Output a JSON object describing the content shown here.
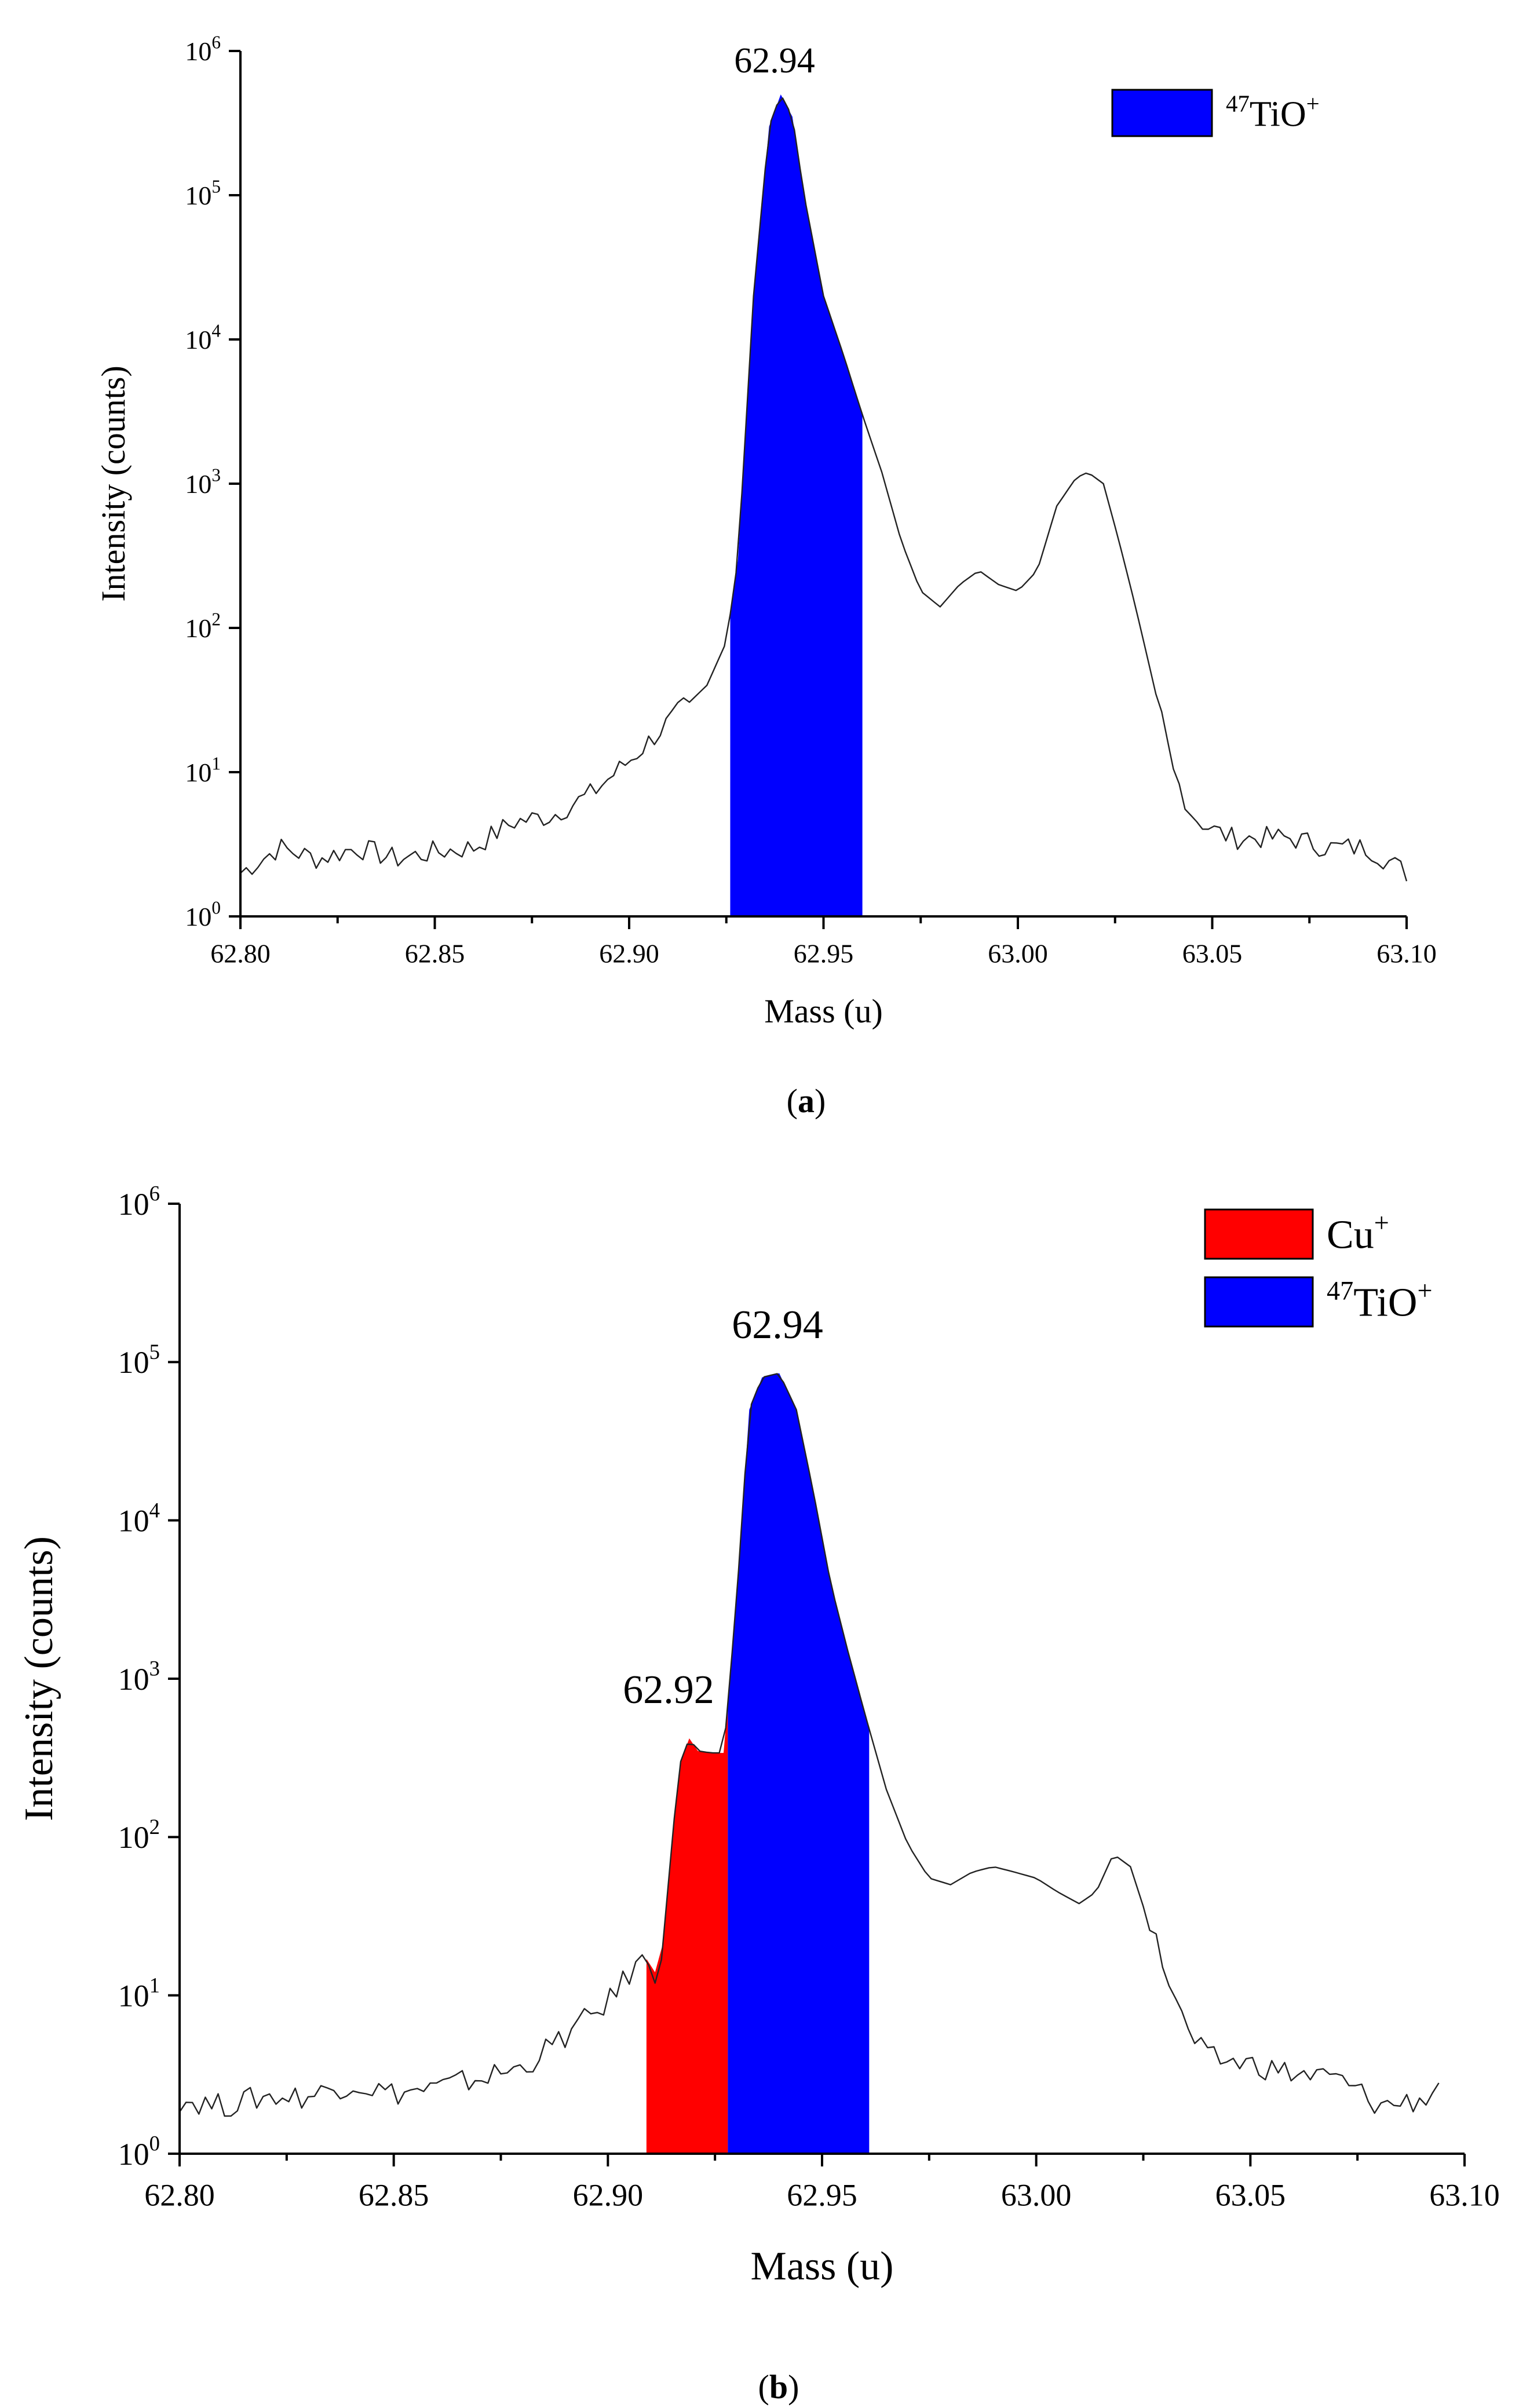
{
  "chart_data": [
    {
      "type": "area",
      "panel_label": "a",
      "xlabel": "Mass (u)",
      "ylabel": "Intensity (counts)",
      "xlim": [
        62.8,
        63.1
      ],
      "ylim": [
        1,
        1000000
      ],
      "yscale": "log",
      "x_ticks": [
        "62.80",
        "62.85",
        "62.90",
        "62.95",
        "63.00",
        "63.05",
        "63.10"
      ],
      "y_ticks": [
        {
          "base": "10",
          "exp": "0"
        },
        {
          "base": "10",
          "exp": "1"
        },
        {
          "base": "10",
          "exp": "2"
        },
        {
          "base": "10",
          "exp": "3"
        },
        {
          "base": "10",
          "exp": "4"
        },
        {
          "base": "10",
          "exp": "5"
        },
        {
          "base": "10",
          "exp": "6"
        }
      ],
      "annotations": [
        {
          "text": "62.94",
          "x": 62.94,
          "y": 1000000
        }
      ],
      "legend": {
        "position": "top-right",
        "entries": [
          {
            "pre": "47",
            "main": "TiO",
            "post": "+",
            "color": "#0000ff"
          }
        ]
      },
      "series": [
        {
          "name": "spectrum",
          "color": "#222222",
          "x": [
            62.8,
            62.81,
            62.82,
            62.83,
            62.84,
            62.85,
            62.86,
            62.87,
            62.88,
            62.89,
            62.9,
            62.91,
            62.92,
            62.925,
            62.928,
            62.932,
            62.936,
            62.939,
            62.942,
            62.945,
            62.95,
            62.955,
            62.96,
            62.965,
            62.97,
            62.975,
            62.98,
            62.985,
            62.99,
            62.995,
            63.0,
            63.005,
            63.01,
            63.015,
            63.018,
            63.022,
            63.026,
            63.03,
            63.035,
            63.04,
            63.045,
            63.05,
            63.055,
            63.06,
            63.07,
            63.08,
            63.09,
            63.1
          ],
          "y": [
            2.0,
            3.0,
            2.5,
            3.0,
            2.5,
            2.8,
            3.0,
            4.5,
            5.0,
            7.0,
            12,
            22,
            40,
            80,
            300,
            20000,
            300000,
            500000,
            350000,
            100000,
            20000,
            8000,
            3000,
            1200,
            400,
            180,
            140,
            200,
            250,
            200,
            180,
            250,
            700,
            1100,
            1200,
            1000,
            400,
            150,
            40,
            10,
            5.0,
            4.0,
            3.5,
            3.5,
            3.5,
            3.0,
            3.0,
            2.0
          ]
        },
        {
          "name": "47TiO+ fill",
          "color": "#0000ff",
          "x_range": [
            62.926,
            62.96
          ]
        }
      ]
    },
    {
      "type": "area",
      "panel_label": "b",
      "xlabel": "Mass (u)",
      "ylabel": "Intensity (counts)",
      "xlim": [
        62.8,
        63.1
      ],
      "ylim": [
        1,
        1000000
      ],
      "yscale": "log",
      "x_ticks": [
        "62.80",
        "62.85",
        "62.90",
        "62.95",
        "63.00",
        "63.05",
        "63.10"
      ],
      "y_ticks": [
        {
          "base": "10",
          "exp": "0"
        },
        {
          "base": "10",
          "exp": "1"
        },
        {
          "base": "10",
          "exp": "2"
        },
        {
          "base": "10",
          "exp": "3"
        },
        {
          "base": "10",
          "exp": "4"
        },
        {
          "base": "10",
          "exp": "5"
        },
        {
          "base": "10",
          "exp": "6"
        }
      ],
      "annotations": [
        {
          "text": "62.94",
          "x": 62.94,
          "y": 200000
        },
        {
          "text": "62.92",
          "x": 62.919,
          "y": 900
        }
      ],
      "legend": {
        "position": "top-right",
        "entries": [
          {
            "pre": "",
            "main": "Cu",
            "post": "+",
            "color": "#ff0000"
          },
          {
            "pre": "47",
            "main": "TiO",
            "post": "+",
            "color": "#0000ff"
          }
        ]
      },
      "series": [
        {
          "name": "spectrum",
          "color": "#222222",
          "x": [
            62.8,
            62.81,
            62.82,
            62.83,
            62.84,
            62.85,
            62.86,
            62.87,
            62.88,
            62.89,
            62.9,
            62.906,
            62.909,
            62.911,
            62.913,
            62.915,
            62.917,
            62.919,
            62.921,
            62.924,
            62.927,
            62.93,
            62.933,
            62.936,
            62.94,
            62.944,
            62.948,
            62.952,
            62.956,
            62.96,
            62.965,
            62.97,
            62.975,
            62.98,
            62.985,
            62.99,
            62.995,
            63.0,
            63.005,
            63.01,
            63.014,
            63.018,
            63.022,
            63.026,
            63.03,
            63.035,
            63.04,
            63.05,
            63.06,
            63.07,
            63.075,
            63.08,
            63.09,
            63.095
          ],
          "y": [
            2.2,
            2.0,
            2.3,
            2.3,
            2.8,
            2.4,
            2.6,
            3.0,
            3.5,
            5.5,
            9.0,
            15,
            17,
            14,
            22,
            100,
            300,
            420,
            350,
            340,
            340,
            3000,
            50000,
            80000,
            85000,
            50000,
            15000,
            4000,
            1500,
            600,
            200,
            90,
            55,
            50,
            60,
            65,
            60,
            55,
            45,
            38,
            45,
            78,
            65,
            30,
            15,
            6.0,
            4.0,
            3.7,
            3.2,
            3.0,
            2.5,
            2.0,
            2.2,
            2.8
          ]
        },
        {
          "name": "Cu+ fill",
          "color": "#ff0000",
          "x_range": [
            62.909,
            62.928
          ]
        },
        {
          "name": "47TiO+ fill",
          "color": "#0000ff",
          "x_range": [
            62.928,
            62.961
          ]
        }
      ]
    }
  ]
}
